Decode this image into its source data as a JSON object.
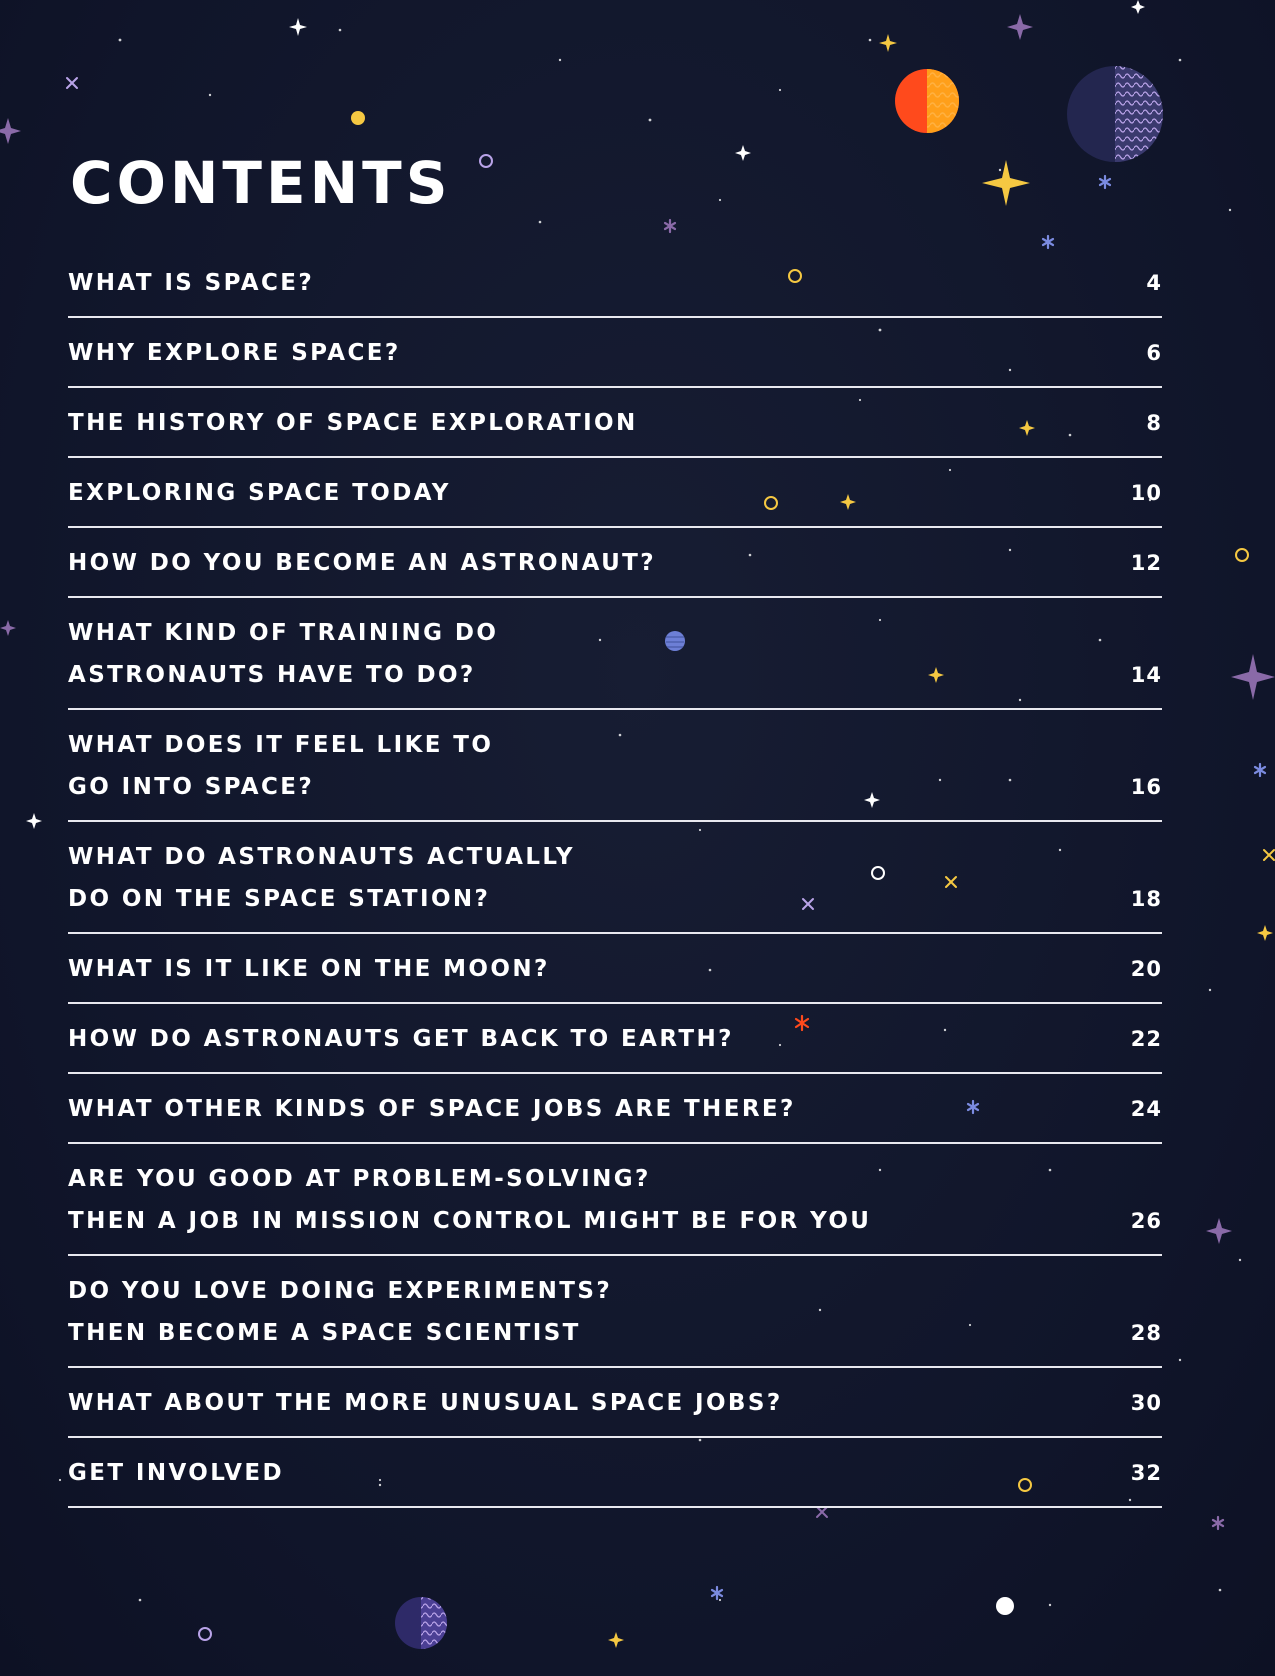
{
  "heading": "CONTENTS",
  "colors": {
    "background": "#12172b",
    "text": "#ffffff",
    "rule": "#e8e8ef",
    "planet_red": "#ff4a1c",
    "planet_orange": "#ff9f1a",
    "planet_navy": "#23264f",
    "star_yellow": "#f5c842",
    "star_purple": "#8a6aa8"
  },
  "entries": [
    {
      "title": "WHAT IS SPACE?",
      "page": "4",
      "lines": 1
    },
    {
      "title": "WHY EXPLORE SPACE?",
      "page": "6",
      "lines": 1
    },
    {
      "title": "THE HISTORY OF SPACE EXPLORATION",
      "page": "8",
      "lines": 1
    },
    {
      "title": "EXPLORING SPACE TODAY",
      "page": "10",
      "lines": 1
    },
    {
      "title": "HOW DO YOU BECOME AN ASTRONAUT?",
      "page": "12",
      "lines": 1
    },
    {
      "title": "WHAT KIND OF TRAINING DO\nASTRONAUTS HAVE TO DO?",
      "page": "14",
      "lines": 2
    },
    {
      "title": "WHAT DOES IT FEEL LIKE TO\nGO INTO SPACE?",
      "page": "16",
      "lines": 2
    },
    {
      "title": "WHAT DO ASTRONAUTS ACTUALLY\nDO ON THE SPACE STATION?",
      "page": "18",
      "lines": 2
    },
    {
      "title": "WHAT IS IT LIKE ON THE MOON?",
      "page": "20",
      "lines": 1
    },
    {
      "title": "HOW DO ASTRONAUTS GET BACK TO EARTH?",
      "page": "22",
      "lines": 1
    },
    {
      "title": "WHAT OTHER KINDS OF SPACE JOBS ARE THERE?",
      "page": "24",
      "lines": 1
    },
    {
      "title": "ARE YOU GOOD AT PROBLEM-SOLVING?\nTHEN A JOB IN MISSION CONTROL MIGHT BE FOR YOU",
      "page": "26",
      "lines": 2
    },
    {
      "title": "DO YOU LOVE DOING EXPERIMENTS?\nTHEN BECOME A SPACE SCIENTIST",
      "page": "28",
      "lines": 2
    },
    {
      "title": "WHAT ABOUT THE MORE UNUSUAL SPACE JOBS?",
      "page": "30",
      "lines": 1
    },
    {
      "title": "GET INVOLVED",
      "page": "32",
      "lines": 1
    }
  ]
}
